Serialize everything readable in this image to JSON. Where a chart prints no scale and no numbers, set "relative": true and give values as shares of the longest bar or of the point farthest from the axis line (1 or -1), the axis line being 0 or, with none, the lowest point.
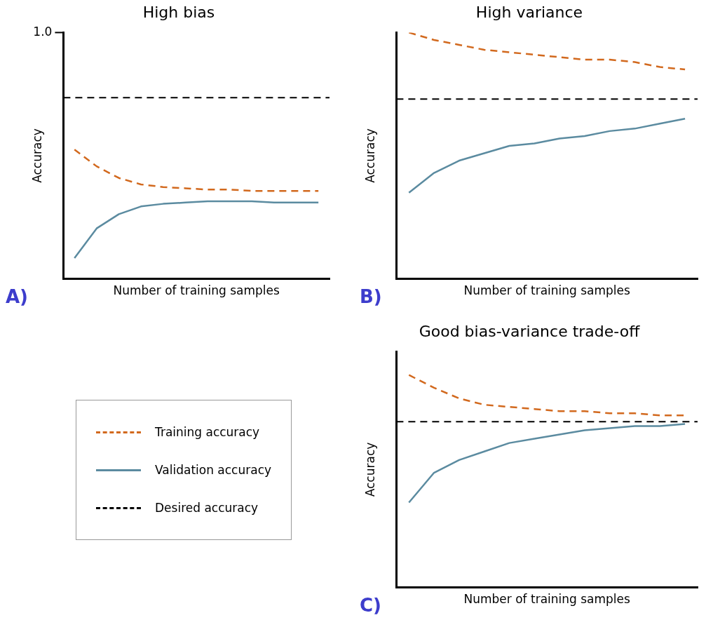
{
  "chart_data": [
    {
      "type": "line",
      "title": "High bias",
      "xlabel": "Number of training samples",
      "ylabel": "Accuracy",
      "categories": [
        null,
        null,
        null,
        null,
        null,
        null,
        null,
        null,
        null,
        null,
        null,
        null
      ],
      "relative": true,
      "tick_labels": false,
      "legend": "bottom",
      "annotations": [
        "1.0",
        "A)"
      ],
      "series": [
        {
          "name": "Training accuracy",
          "color": "#d2691e",
          "line_style": "dashed",
          "values": [
            1,
            0.87,
            0.78,
            0.73,
            0.71,
            0.7,
            0.69,
            0.69,
            0.68,
            0.68,
            0.68,
            0.68
          ]
        },
        {
          "name": "Validation accuracy",
          "color": "#5b8ba0",
          "line_style": "solid",
          "values": [
            0.16,
            0.39,
            0.5,
            0.56,
            0.58,
            0.59,
            0.6,
            0.6,
            0.6,
            0.59,
            0.59,
            0.59
          ]
        }
      ],
      "ref_lines": [
        {
          "axis": "y",
          "value": 1.4,
          "label": "Desired accuracy",
          "color": "#000000",
          "line_style": "dashed"
        }
      ]
    },
    {
      "type": "line",
      "title": "High variance",
      "xlabel": "Number of training samples",
      "ylabel": "Accuracy",
      "categories": [
        null,
        null,
        null,
        null,
        null,
        null,
        null,
        null,
        null,
        null,
        null,
        null
      ],
      "relative": true,
      "tick_labels": false,
      "annotations": [
        "B)"
      ],
      "series": [
        {
          "color": "#d2691e",
          "line_style": "dashed",
          "values": [
            1,
            0.97,
            0.95,
            0.93,
            0.92,
            0.91,
            0.9,
            0.89,
            0.89,
            0.88,
            0.86,
            0.85
          ]
        },
        {
          "color": "#5b8ba0",
          "line_style": "solid",
          "values": [
            0.35,
            0.43,
            0.48,
            0.51,
            0.54,
            0.55,
            0.57,
            0.58,
            0.6,
            0.61,
            0.63,
            0.65
          ]
        }
      ],
      "ref_lines": [
        {
          "axis": "y",
          "value": 0.73,
          "color": "#000000",
          "line_style": "dashed"
        }
      ]
    },
    {
      "type": "line",
      "title": "Good bias-variance trade-off",
      "xlabel": "Number of training samples",
      "ylabel": "Accuracy",
      "categories": [
        null,
        null,
        null,
        null,
        null,
        null,
        null,
        null,
        null,
        null,
        null,
        null
      ],
      "relative": true,
      "tick_labels": false,
      "annotations": [
        "C)"
      ],
      "series": [
        {
          "color": "#d2691e",
          "line_style": "dashed",
          "values": [
            1,
            0.94,
            0.89,
            0.86,
            0.85,
            0.84,
            0.83,
            0.83,
            0.82,
            0.82,
            0.81,
            0.81
          ]
        },
        {
          "color": "#5b8ba0",
          "line_style": "solid",
          "values": [
            0.4,
            0.54,
            0.6,
            0.64,
            0.68,
            0.7,
            0.72,
            0.74,
            0.75,
            0.76,
            0.76,
            0.77
          ]
        }
      ],
      "ref_lines": [
        {
          "axis": "y",
          "value": 0.78,
          "color": "#000000",
          "line_style": "dashed"
        }
      ]
    }
  ]
}
